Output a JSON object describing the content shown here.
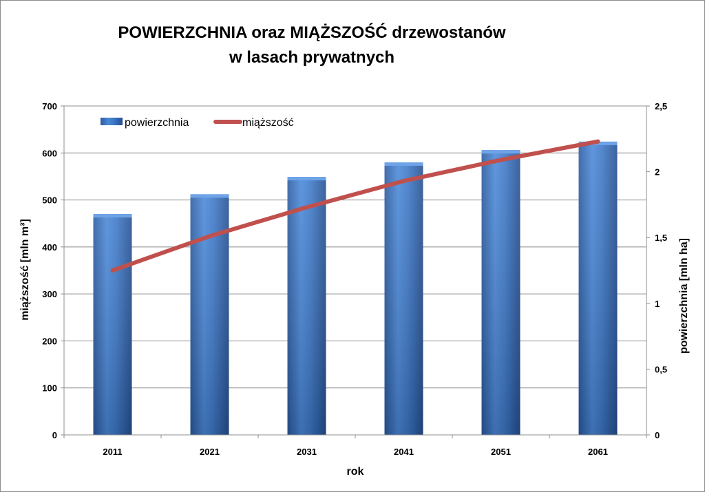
{
  "chart_data": {
    "type": "bar+line",
    "title_line1": "POWIERZCHNIA oraz MIĄŻSZOŚĆ drzewostanów",
    "title_line2": "w lasach prywatnych",
    "xlabel": "rok",
    "ylabel_left": "miąższość [mln m³]",
    "ylabel_right": "powierzchnia [mln ha]",
    "categories": [
      "2011",
      "2021",
      "2031",
      "2041",
      "2051",
      "2061"
    ],
    "left_axis": {
      "min": 0,
      "max": 700,
      "step": 100,
      "ticks": [
        "0",
        "100",
        "200",
        "300",
        "400",
        "500",
        "600",
        "700"
      ]
    },
    "right_axis": {
      "min": 0,
      "max": 2.5,
      "step": 0.5,
      "ticks": [
        "0",
        "0,5",
        "1",
        "1,5",
        "2",
        "2,5"
      ]
    },
    "grid": true,
    "legend_position": "top-left",
    "series": [
      {
        "name": "powierzchnia",
        "type": "bar",
        "axis": "left",
        "values": [
          470,
          512,
          549,
          580,
          606,
          624
        ],
        "color": "#3a74c4"
      },
      {
        "name": "miąższość",
        "type": "line",
        "axis": "right",
        "values": [
          1.25,
          1.51,
          1.73,
          1.93,
          2.09,
          2.23
        ],
        "color": "#c0504d"
      }
    ]
  }
}
